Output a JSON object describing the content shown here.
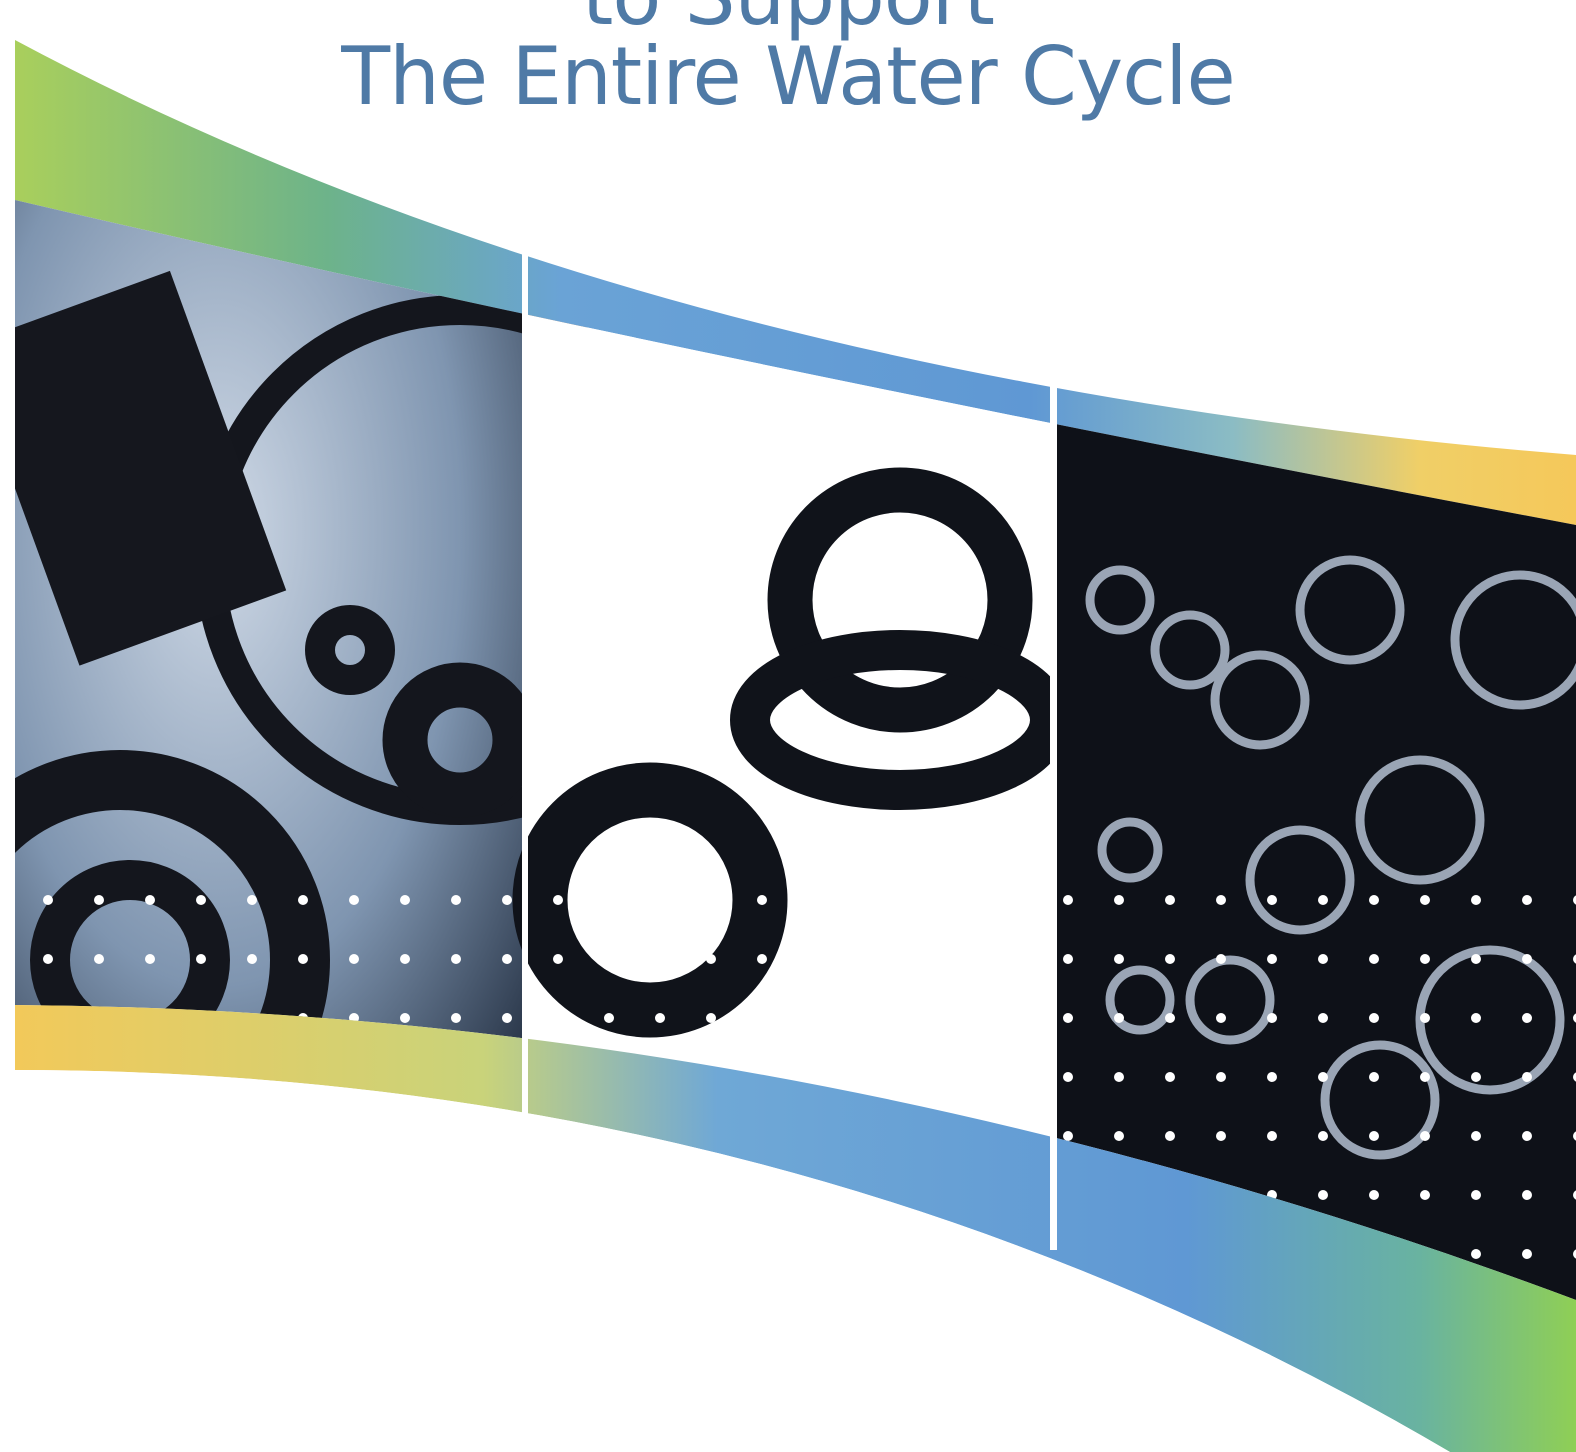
{
  "headline": {
    "line1": "to Support",
    "line2": "The Entire Water Cycle"
  }
}
